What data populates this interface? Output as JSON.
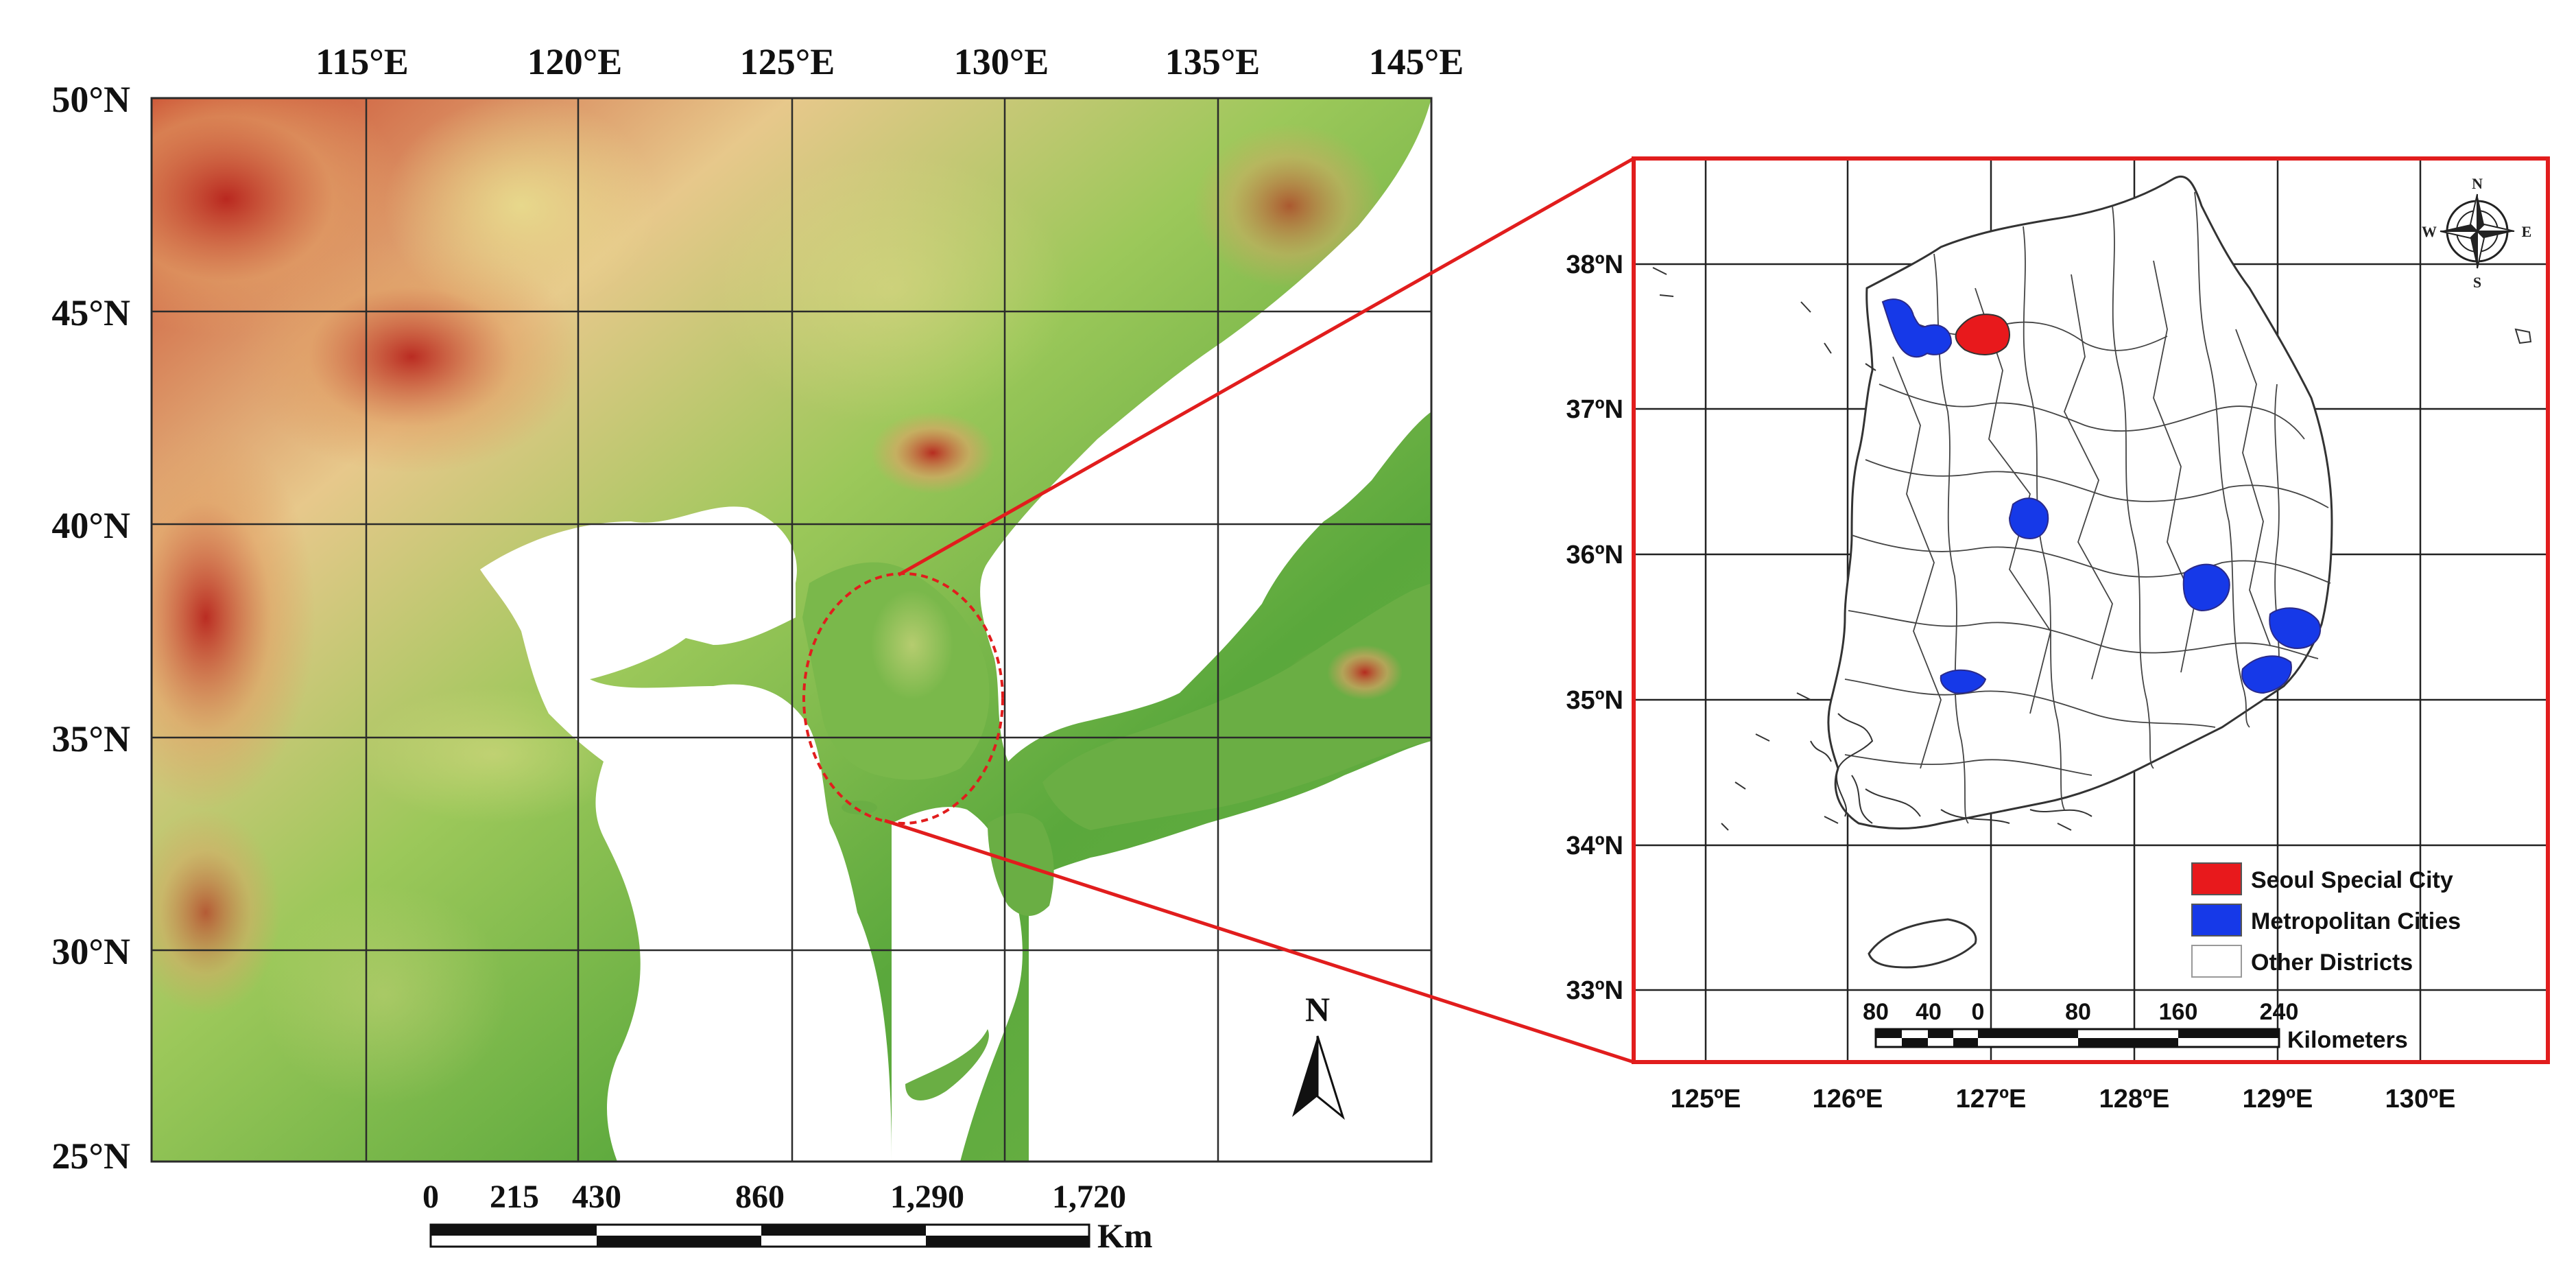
{
  "left_map": {
    "lon_labels": [
      "115°E",
      "120°E",
      "125°E",
      "130°E",
      "135°E",
      "145°E"
    ],
    "lat_labels": [
      "50°N",
      "45°N",
      "40°N",
      "35°N",
      "30°N",
      "25°N"
    ],
    "scale": {
      "ticks": [
        "0",
        "215",
        "430",
        "860",
        "1,290",
        "1,720"
      ],
      "unit": "Km"
    },
    "north_label": "N",
    "colors": {
      "lowland": "#58a83b",
      "midland": "#d9e79a",
      "highland": "#c1392b",
      "water": "#ffffff"
    }
  },
  "right_map": {
    "lon_labels": [
      "125ºE",
      "126ºE",
      "127ºE",
      "128ºE",
      "129ºE",
      "130ºE"
    ],
    "lat_labels": [
      "38ºN",
      "37ºN",
      "36ºN",
      "35ºN",
      "34ºN",
      "33ºN"
    ],
    "compass": {
      "n": "N",
      "s": "S",
      "e": "E",
      "w": "W"
    },
    "legend": [
      {
        "label": "Seoul Special City",
        "color": "#e8191c"
      },
      {
        "label": "Metropolitan Cities",
        "color": "#1639e8"
      },
      {
        "label": "Other Districts",
        "color": "#ffffff"
      }
    ],
    "scale": {
      "ticks": [
        "80",
        "40",
        "0",
        "80",
        "160",
        "240"
      ],
      "unit": "Kilometers"
    },
    "frame_color": "#e11d1d"
  }
}
